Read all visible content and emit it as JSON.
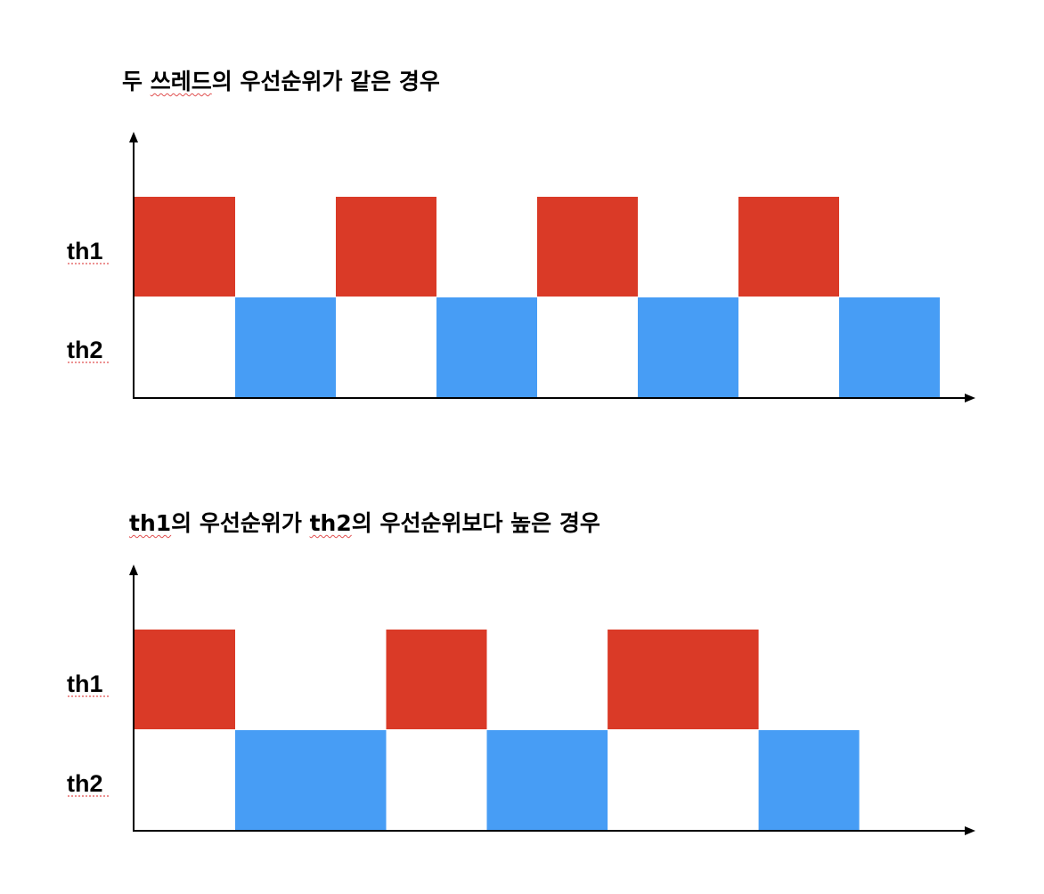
{
  "colors": {
    "th1": "#DA3A27",
    "th2": "#479DF5",
    "axis": "#000000"
  },
  "diagrams": [
    {
      "title_parts": [
        "두 ",
        "쓰레드",
        "의 우선순위가 같은 경우"
      ],
      "labels": {
        "th1": "th1",
        "th2": "th2"
      },
      "th1_blocks": [
        [
          0,
          1
        ],
        [
          2,
          3
        ],
        [
          4,
          5
        ],
        [
          6,
          7
        ]
      ],
      "th2_blocks": [
        [
          1,
          2
        ],
        [
          3,
          4
        ],
        [
          5,
          6
        ],
        [
          7,
          8
        ]
      ]
    },
    {
      "title_parts": [
        "th1",
        "의 우선순위가 ",
        "th2",
        "의 우선순위보다 높은 경우"
      ],
      "labels": {
        "th1": "th1",
        "th2": "th2"
      },
      "th1_blocks": [
        [
          0,
          1
        ],
        [
          2.5,
          3.5
        ],
        [
          4.7,
          6.2
        ]
      ],
      "th2_blocks": [
        [
          1,
          2.5
        ],
        [
          3.5,
          4.7
        ],
        [
          6.2,
          7.2
        ]
      ]
    }
  ]
}
